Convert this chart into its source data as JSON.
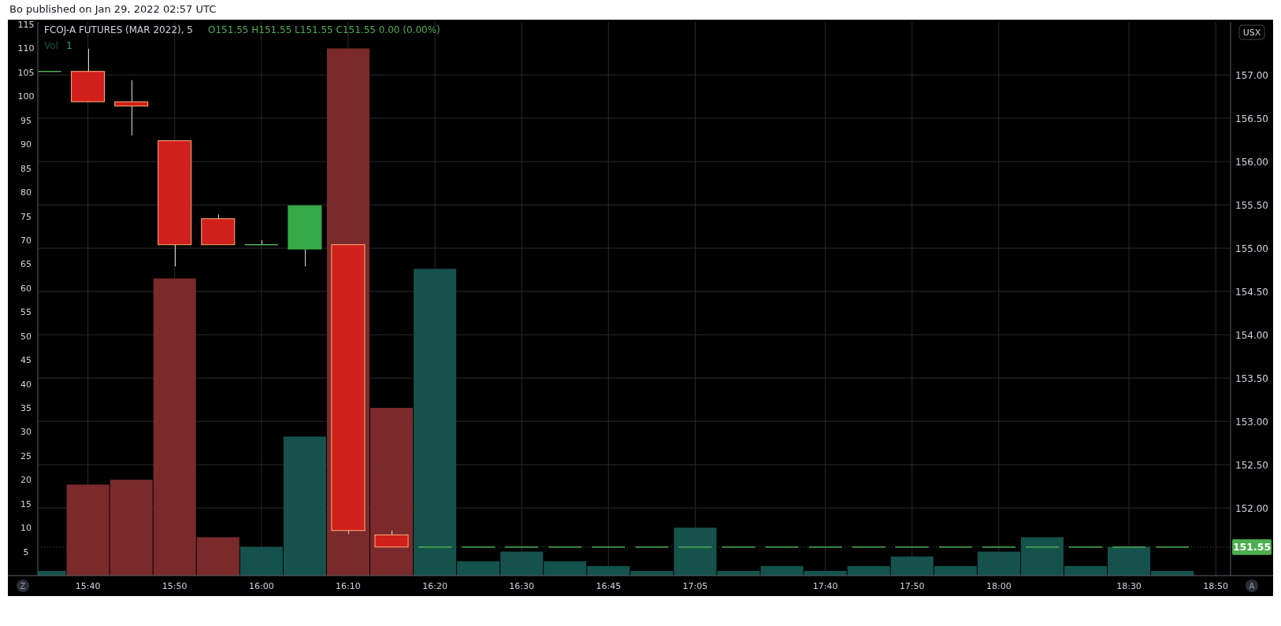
{
  "chart_data": {
    "type": "candlestick",
    "title": "FCOJ-A FUTURES (MAR 2022), 5",
    "subtitle": "Bo published on Jan 29, 2022 02:57 UTC",
    "annotations": [
      "O151.55 H151.55 L151.55 C151.55 0.00 (0.00%)",
      "1",
      "USX",
      "Z",
      "A"
    ],
    "categories": [
      null,
      "15:40",
      null,
      "15:50",
      null,
      "16:00",
      null,
      "16:10",
      null,
      "16:20",
      null,
      "16:30",
      null,
      "16:45",
      null,
      "17:05",
      null,
      null,
      "17:40",
      null,
      "17:50",
      null,
      "18:00",
      null,
      null,
      "18:30",
      null,
      "18:50"
    ],
    "series": [
      {
        "name": "Vol",
        "type": "bar",
        "values": [
          1,
          19,
          20,
          62,
          8,
          6,
          29,
          110,
          35,
          64,
          3,
          5,
          3,
          2,
          1,
          10,
          1,
          2,
          1,
          2,
          4,
          2,
          5,
          8,
          2,
          6,
          1,
          null
        ],
        "colors": [
          "#15524c",
          "#7a2a2a",
          "#7a2a2a",
          "#7a2a2a",
          "#7a2a2a",
          "#15524c",
          "#15524c",
          "#7a2a2a",
          "#7a2a2a",
          "#15524c",
          "#15524c",
          "#15524c",
          "#15524c",
          "#15524c",
          "#15524c",
          "#15524c",
          "#15524c",
          "#15524c",
          "#15524c",
          "#15524c",
          "#15524c",
          "#15524c",
          "#15524c",
          "#15524c",
          "#15524c",
          "#15524c",
          "#15524c",
          null
        ]
      },
      {
        "axis": "y2",
        "ohlc": [
          [
            157.04,
            157.04,
            157.04,
            157.04
          ],
          [
            157.04,
            157.3,
            156.69,
            156.69
          ],
          [
            156.69,
            156.94,
            156.3,
            156.64
          ],
          [
            156.24,
            156.24,
            154.79,
            155.04
          ],
          [
            155.34,
            155.39,
            155.04,
            155.04
          ],
          [
            155.04,
            155.09,
            155.04,
            155.04
          ],
          [
            154.99,
            155.49,
            154.79,
            155.49
          ],
          [
            155.04,
            155.04,
            151.7,
            151.74
          ],
          [
            151.69,
            151.74,
            151.55,
            151.55
          ],
          [
            151.55,
            151.55,
            151.55,
            151.55
          ],
          [
            151.55,
            151.55,
            151.55,
            151.55
          ],
          [
            151.55,
            151.55,
            151.55,
            151.55
          ],
          [
            151.55,
            151.55,
            151.55,
            151.55
          ],
          [
            151.55,
            151.55,
            151.55,
            151.55
          ],
          [
            151.55,
            151.55,
            151.55,
            151.55
          ],
          [
            151.55,
            151.55,
            151.55,
            151.55
          ],
          [
            151.55,
            151.55,
            151.55,
            151.55
          ],
          [
            151.55,
            151.55,
            151.55,
            151.55
          ],
          [
            151.55,
            151.55,
            151.55,
            151.55
          ],
          [
            151.55,
            151.55,
            151.55,
            151.55
          ],
          [
            151.55,
            151.55,
            151.55,
            151.55
          ],
          [
            151.55,
            151.55,
            151.55,
            151.55
          ],
          [
            151.55,
            151.55,
            151.55,
            151.55
          ],
          [
            151.55,
            151.55,
            151.55,
            151.55
          ],
          [
            151.55,
            151.55,
            151.55,
            151.55
          ],
          [
            151.55,
            151.55,
            151.55,
            151.55
          ],
          [
            151.55,
            151.55,
            151.55,
            151.55
          ],
          null
        ],
        "colors": [
          "#4caf50",
          "#d11f1b",
          "#d11f1b",
          "#d11f1b",
          "#d11f1b",
          "#4caf50",
          "#37aa48",
          "#d11f1b",
          "#d11f1b",
          "#4caf50",
          "#4caf50",
          "#4caf50",
          "#4caf50",
          "#4caf50",
          "#4caf50",
          "#4caf50",
          "#4caf50",
          "#4caf50",
          "#4caf50",
          "#4caf50",
          "#4caf50",
          "#4caf50",
          "#4caf50",
          "#4caf50",
          "#4caf50",
          "#4caf50",
          "#4caf50",
          null
        ]
      }
    ],
    "ylim": [
      0,
      115.5
    ],
    "yticks": [
      5,
      10,
      15,
      20,
      25,
      30,
      35,
      40,
      45,
      50,
      55,
      60,
      65,
      70,
      75,
      80,
      85,
      90,
      95,
      100,
      105,
      110,
      115
    ],
    "y2lim": [
      151.22,
      157.61
    ],
    "y2ticks": [
      {
        "value": 152,
        "label": "152.00"
      },
      {
        "value": 152.5,
        "label": "152.50"
      },
      {
        "value": 153,
        "label": "153.00"
      },
      {
        "value": 153.5,
        "label": "153.50"
      },
      {
        "value": 154,
        "label": "154.00"
      },
      {
        "value": 154.5,
        "label": "154.50"
      },
      {
        "value": 155,
        "label": "155.00"
      },
      {
        "value": 155.5,
        "label": "155.50"
      },
      {
        "value": 156,
        "label": "156.00"
      },
      {
        "value": 156.5,
        "label": "156.50"
      },
      {
        "value": 157,
        "label": "157.00"
      }
    ],
    "ref_lines": [
      {
        "axis": "y2",
        "value": 151.55,
        "label": "151.55",
        "color": "#4caf50"
      }
    ],
    "grid": true
  }
}
